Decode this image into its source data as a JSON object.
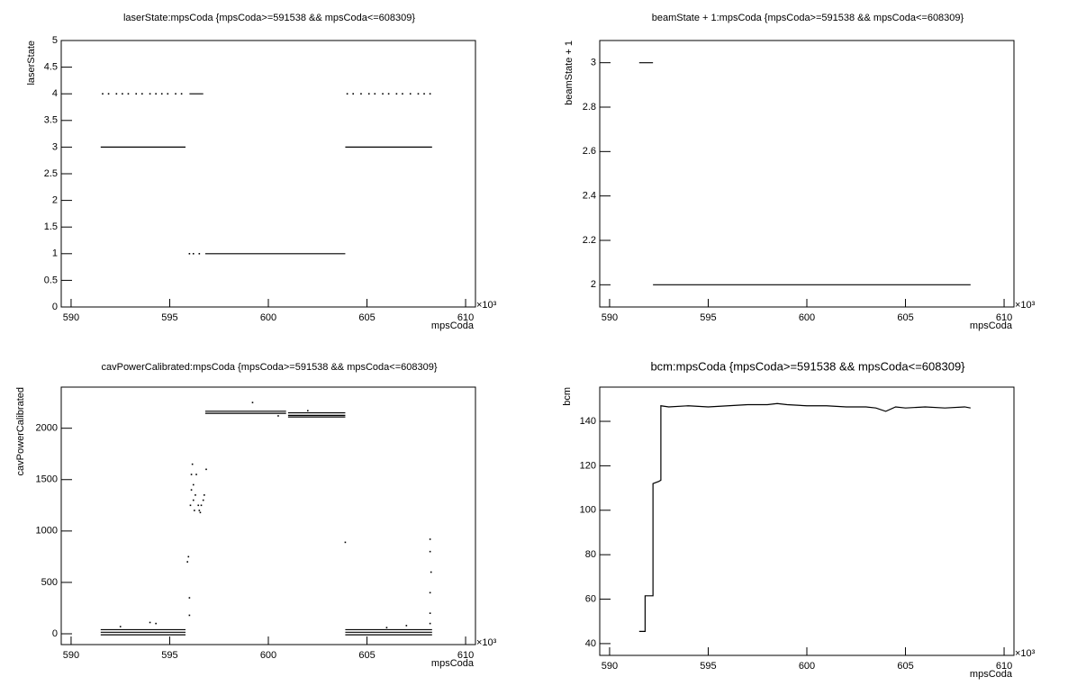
{
  "chart_data": [
    {
      "type": "scatter",
      "title": "laserState:mpsCoda {mpsCoda>=591538 && mpsCoda<=608309}",
      "x_label": "mpsCoda",
      "x_exponent_label": "×10³",
      "y_label": "laserState",
      "xlim": [
        589.5,
        610.5
      ],
      "xticks": [
        590,
        595,
        600,
        605,
        610
      ],
      "ylim": [
        0,
        5
      ],
      "yticks": [
        0,
        0.5,
        1,
        1.5,
        2,
        2.5,
        3,
        3.5,
        4,
        4.5,
        5
      ],
      "series": [
        {
          "mode": "line",
          "color": "#000000",
          "x": [
            591.5,
            595.8,
            null,
            596.8,
            603.9,
            null,
            603.9,
            608.3,
            null,
            596.0,
            596.7
          ],
          "y": [
            3,
            3,
            null,
            1,
            1,
            null,
            3,
            3,
            null,
            4,
            4
          ]
        },
        {
          "mode": "markers",
          "color": "#000000",
          "x": [
            591.6,
            591.9,
            592.3,
            592.6,
            592.9,
            593.3,
            593.6,
            594.0,
            594.3,
            594.6,
            594.9,
            595.3,
            595.6,
            604.0,
            604.3,
            604.7,
            605.1,
            605.4,
            605.8,
            606.1,
            606.5,
            606.8,
            607.2,
            607.6,
            607.9,
            608.2,
            596.0,
            596.2,
            596.5
          ],
          "y": [
            4,
            4,
            4,
            4,
            4,
            4,
            4,
            4,
            4,
            4,
            4,
            4,
            4,
            4,
            4,
            4,
            4,
            4,
            4,
            4,
            4,
            4,
            4,
            4,
            4,
            4,
            1,
            1,
            1
          ]
        }
      ]
    },
    {
      "type": "scatter",
      "title": "beamState + 1:mpsCoda {mpsCoda>=591538 && mpsCoda<=608309}",
      "x_label": "mpsCoda",
      "x_exponent_label": "×10³",
      "y_label": "beamState + 1",
      "xlim": [
        589.5,
        610.5
      ],
      "xticks": [
        590,
        595,
        600,
        605,
        610
      ],
      "ylim": [
        1.9,
        3.1
      ],
      "yticks": [
        2,
        2.2,
        2.4,
        2.6,
        2.8,
        3
      ],
      "series": [
        {
          "mode": "line",
          "color": "#000000",
          "x": [
            591.5,
            592.2,
            null,
            592.2,
            608.3
          ],
          "y": [
            3,
            3,
            null,
            2,
            2
          ]
        }
      ]
    },
    {
      "type": "scatter",
      "title": "cavPowerCalibrated:mpsCoda {mpsCoda>=591538 && mpsCoda<=608309}",
      "x_label": "mpsCoda",
      "x_exponent_label": "×10³",
      "y_label": "cavPowerCalibrated",
      "xlim": [
        589.5,
        610.5
      ],
      "xticks": [
        590,
        595,
        600,
        605,
        610
      ],
      "ylim": [
        -105,
        2400
      ],
      "yticks": [
        0,
        500,
        1000,
        1500,
        2000
      ],
      "series": [
        {
          "mode": "line",
          "color": "#000000",
          "x": [
            591.5,
            595.8,
            null,
            591.5,
            595.8,
            null,
            591.5,
            595.8,
            null,
            603.9,
            608.3,
            null,
            603.9,
            608.3,
            null,
            603.9,
            608.3,
            null,
            596.8,
            600.9,
            null,
            596.8,
            600.9,
            null,
            601.0,
            603.9,
            null,
            601.0,
            603.9,
            null,
            601.0,
            603.9
          ],
          "y": [
            40,
            40,
            null,
            15,
            15,
            null,
            -10,
            -10,
            null,
            40,
            40,
            null,
            15,
            15,
            null,
            -10,
            -10,
            null,
            2165,
            2165,
            null,
            2145,
            2145,
            null,
            2150,
            2150,
            null,
            2125,
            2125,
            null,
            2110,
            2110
          ]
        },
        {
          "mode": "markers",
          "color": "#000000",
          "x": [
            596.0,
            596.0,
            595.9,
            595.95,
            596.05,
            596.1,
            596.1,
            596.15,
            596.2,
            596.2,
            596.25,
            596.3,
            596.35,
            596.45,
            596.5,
            596.55,
            596.6,
            596.7,
            596.75,
            596.85,
            603.9,
            608.2,
            608.2,
            608.25,
            608.2,
            608.2,
            608.2,
            599.2,
            600.5,
            602.0,
            592.5,
            594.0,
            594.3,
            606.0,
            607.0
          ],
          "y": [
            350,
            180,
            700,
            750,
            1250,
            1400,
            1550,
            1650,
            1300,
            1450,
            1200,
            1350,
            1550,
            1250,
            1200,
            1180,
            1250,
            1300,
            1350,
            1600,
            890,
            920,
            800,
            600,
            400,
            200,
            100,
            2250,
            2120,
            2170,
            70,
            110,
            100,
            60,
            80
          ]
        }
      ]
    },
    {
      "type": "scatter",
      "title": "bcm:mpsCoda {mpsCoda>=591538 && mpsCoda<=608309}",
      "x_label": "mpsCoda",
      "x_exponent_label": "×10³",
      "y_label": "bcm",
      "xlim": [
        589.5,
        610.5
      ],
      "xticks": [
        590,
        595,
        600,
        605,
        610
      ],
      "ylim": [
        34.7,
        155.4
      ],
      "yticks": [
        40,
        60,
        80,
        100,
        120,
        140
      ],
      "series": [
        {
          "mode": "line",
          "color": "#000000",
          "x": [
            591.5,
            591.7,
            591.8,
            591.8,
            592.1,
            592.2,
            592.2,
            592.5,
            592.6,
            592.6,
            593,
            594,
            595,
            596,
            597,
            598,
            598.5,
            599,
            600,
            601,
            602,
            603,
            603.5,
            604,
            604.5,
            605,
            606,
            607,
            608,
            608.3
          ],
          "y": [
            45.5,
            45.5,
            45.5,
            61.5,
            61.5,
            61.5,
            112,
            113,
            113.5,
            147,
            146.5,
            147,
            146.5,
            147,
            147.5,
            147.5,
            148,
            147.5,
            147,
            147,
            146.5,
            146.5,
            146,
            144.5,
            146.5,
            146,
            146.5,
            146,
            146.5,
            146
          ]
        }
      ]
    }
  ]
}
